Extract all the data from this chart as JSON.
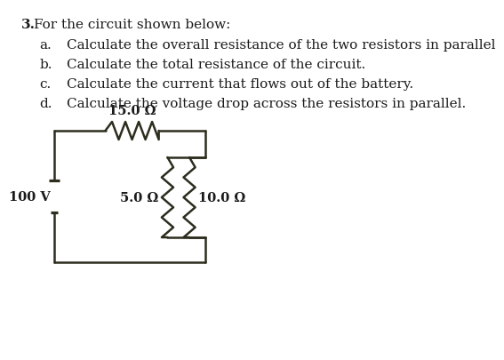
{
  "bg_color": "#ffffff",
  "text_color": "#1a1a1a",
  "line_color": "#2d2d1e",
  "question_number": "3.",
  "question_text": "For the circuit shown below:",
  "items": [
    {
      "label": "a.",
      "text": "Calculate the overall resistance of the two resistors in parallel"
    },
    {
      "label": "b.",
      "text": "Calculate the total resistance of the circuit."
    },
    {
      "label": "c.",
      "text": "Calculate the current that flows out of the battery."
    },
    {
      "label": "d.",
      "text": "Calculate the voltage drop across the resistors in parallel."
    }
  ],
  "resistor_series_label": "15.0 Ω",
  "resistor_parallel1_label": "5.0 Ω",
  "resistor_parallel2_label": "10.0 Ω",
  "battery_label": "100 V",
  "font_size_text": 11,
  "font_size_labels": 11
}
